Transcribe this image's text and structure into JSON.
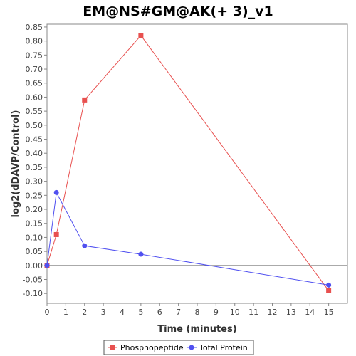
{
  "chart_data": {
    "type": "line",
    "title": "EM@NS#GM@AK(+ 3)_v1",
    "xlabel": "Time (minutes)",
    "ylabel": "log2(dDAVP/Control)",
    "xlim": [
      0,
      16
    ],
    "ylim": [
      -0.135,
      0.86
    ],
    "x_ticks": [
      0,
      1,
      2,
      3,
      4,
      5,
      6,
      7,
      8,
      9,
      10,
      11,
      12,
      13,
      14,
      15
    ],
    "y_ticks": [
      -0.1,
      -0.05,
      0.0,
      0.05,
      0.1,
      0.15,
      0.2,
      0.25,
      0.3,
      0.35,
      0.4,
      0.45,
      0.5,
      0.55,
      0.6,
      0.65,
      0.7,
      0.75,
      0.8,
      0.85
    ],
    "zero_line": true,
    "grid": false,
    "legend_position": "bottom",
    "series": [
      {
        "name": "Phosphopeptide",
        "color": "#e8504f",
        "marker": "square",
        "x": [
          0,
          0.5,
          2,
          5,
          15
        ],
        "y": [
          0.0,
          0.11,
          0.59,
          0.82,
          -0.09
        ]
      },
      {
        "name": "Total Protein",
        "color": "#5050f0",
        "marker": "circle",
        "x": [
          0,
          0.5,
          2,
          5,
          15
        ],
        "y": [
          0.0,
          0.26,
          0.07,
          0.04,
          -0.07
        ]
      }
    ]
  }
}
